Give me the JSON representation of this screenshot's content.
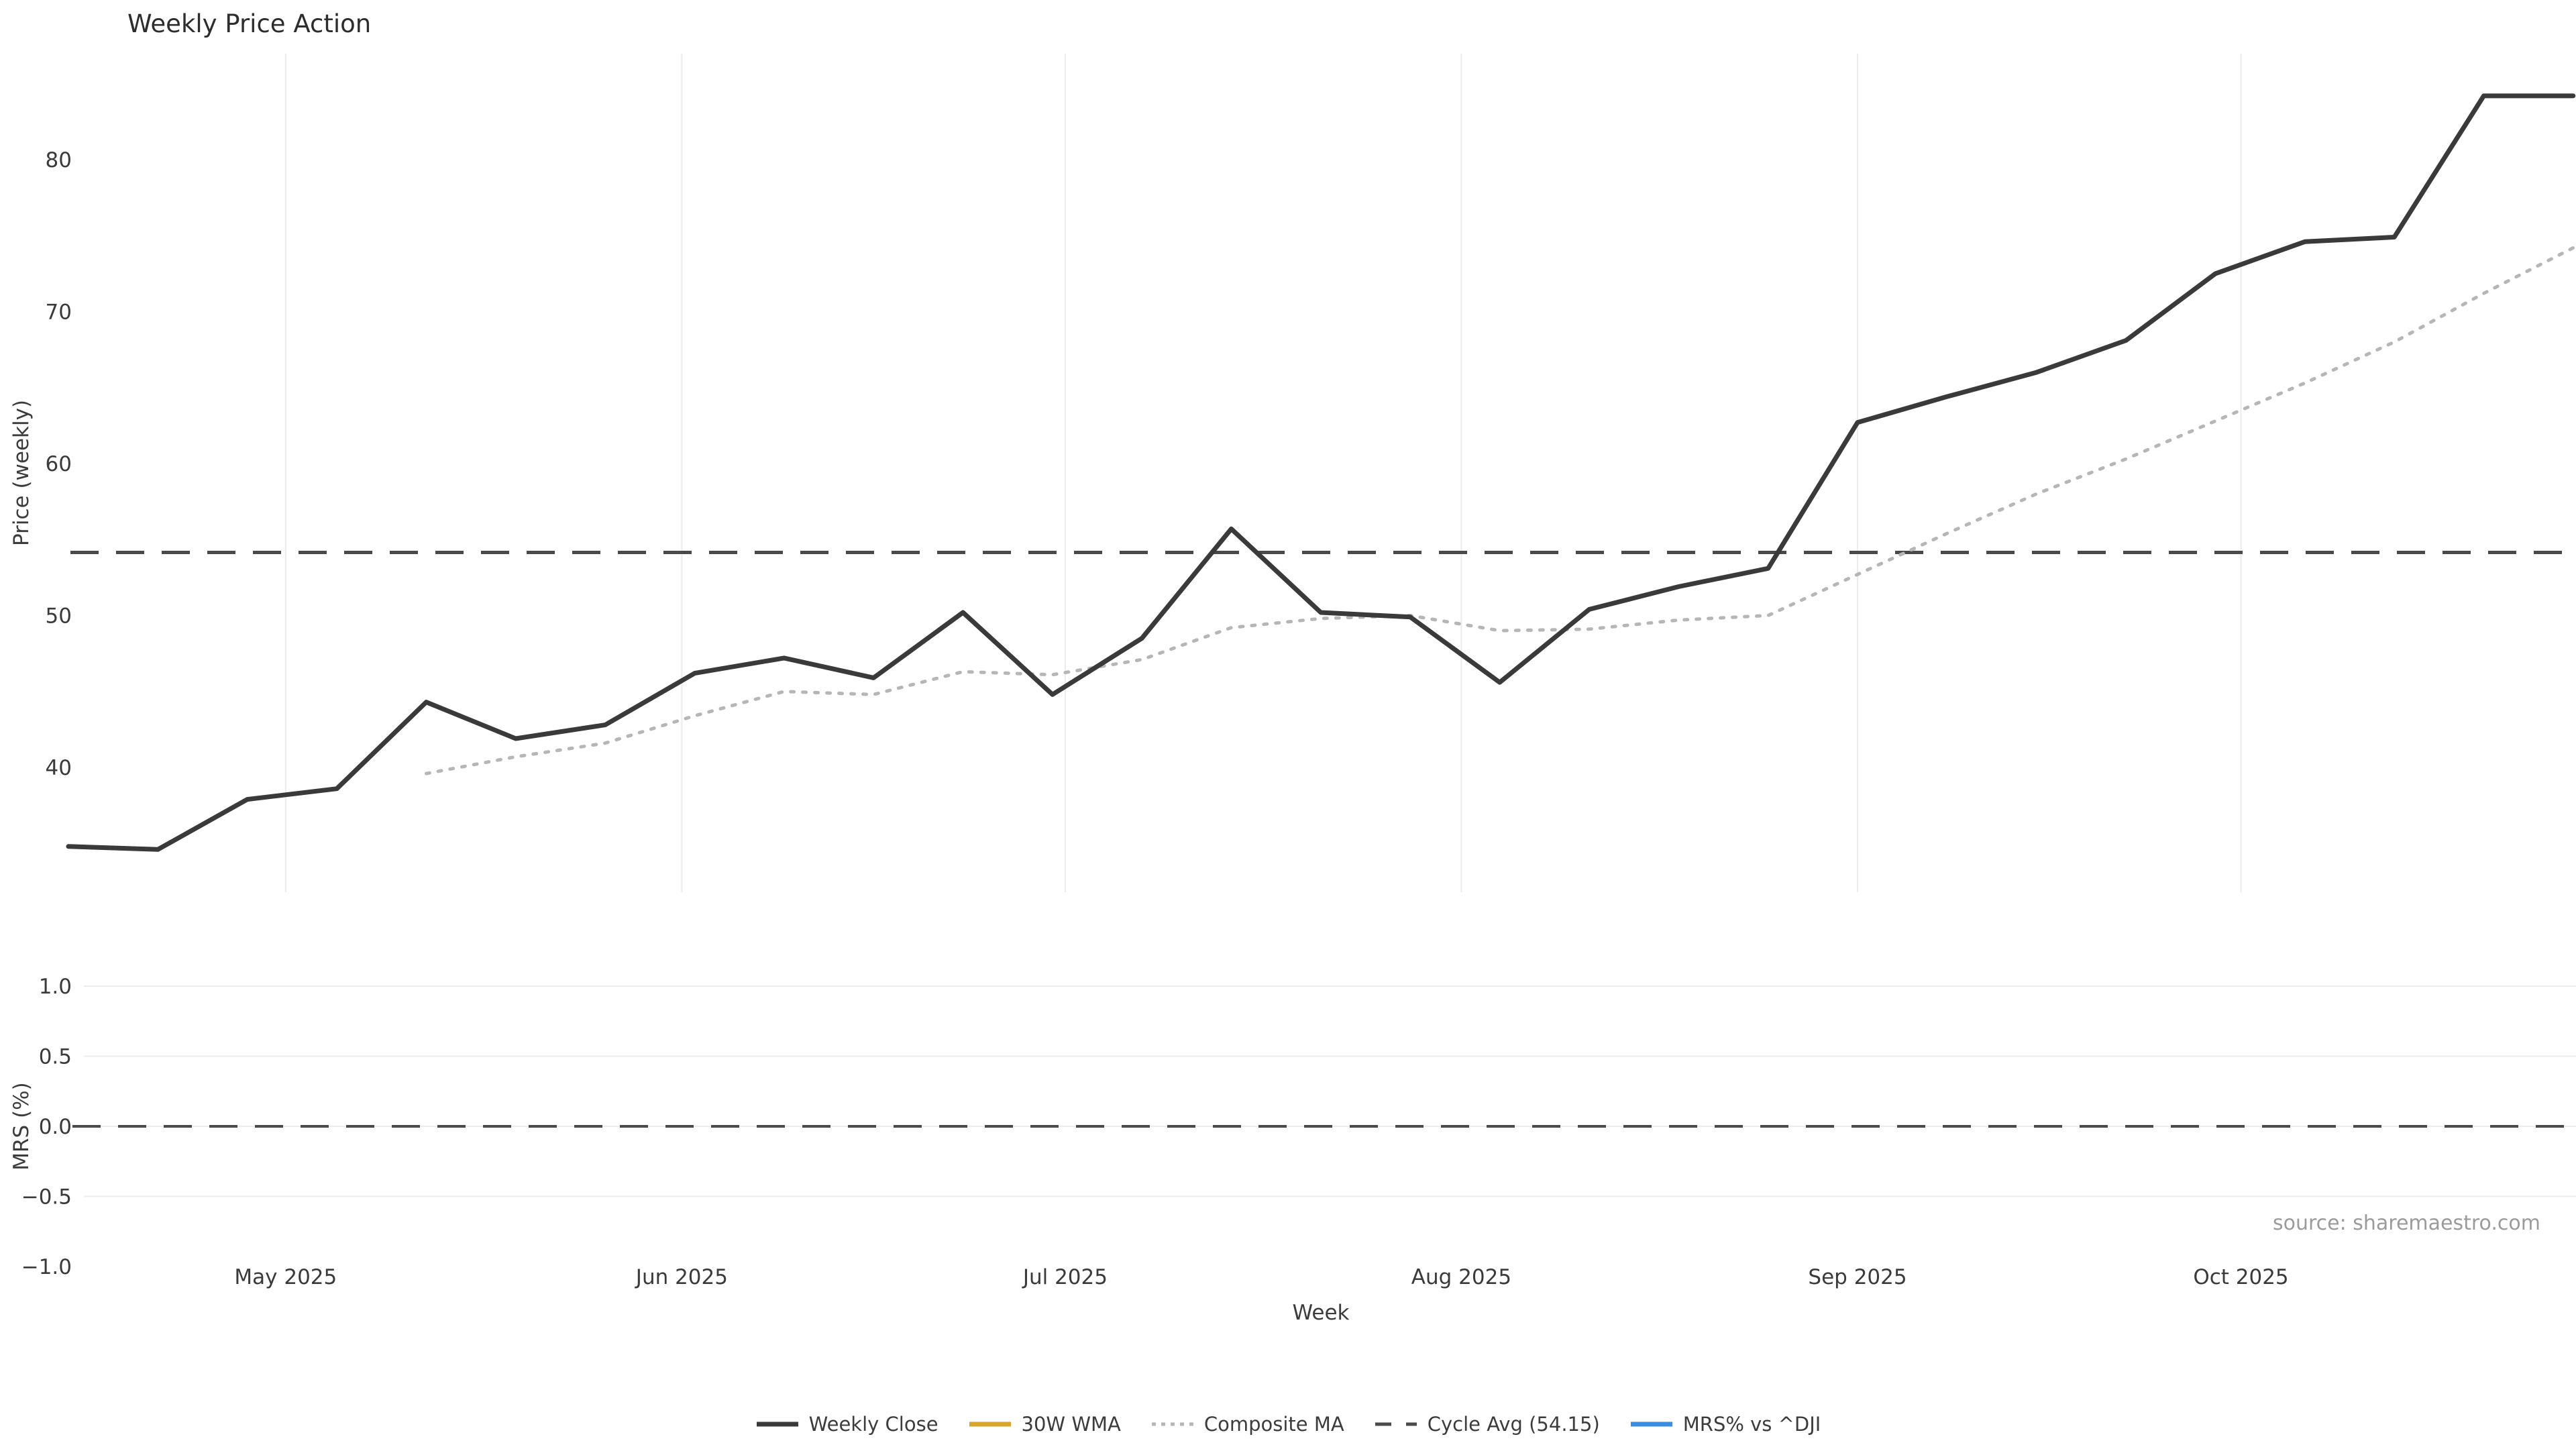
{
  "source_text": "source: sharemaestro.com",
  "chart_data": {
    "type": "line",
    "title": "Weekly Price Action",
    "x_dates": [
      "2025-04-14",
      "2025-04-21",
      "2025-04-28",
      "2025-05-05",
      "2025-05-12",
      "2025-05-19",
      "2025-05-26",
      "2025-06-02",
      "2025-06-09",
      "2025-06-16",
      "2025-06-23",
      "2025-06-30",
      "2025-07-07",
      "2025-07-14",
      "2025-07-21",
      "2025-07-28",
      "2025-08-04",
      "2025-08-11",
      "2025-08-18",
      "2025-08-25",
      "2025-09-01",
      "2025-09-08",
      "2025-09-15",
      "2025-09-22",
      "2025-09-29",
      "2025-10-06",
      "2025-10-13",
      "2025-10-20",
      "2025-10-27"
    ],
    "series": [
      {
        "name": "Weekly Close",
        "color": "#3a3a3a",
        "style": "solid",
        "panel": "price",
        "values": [
          34.8,
          34.6,
          37.9,
          38.6,
          44.3,
          41.9,
          42.8,
          46.2,
          47.2,
          45.9,
          50.2,
          44.8,
          48.5,
          55.7,
          50.2,
          49.9,
          45.6,
          50.4,
          51.9,
          53.1,
          62.7,
          64.4,
          66.0,
          68.1,
          72.5,
          74.6,
          74.9,
          84.2,
          84.2
        ]
      },
      {
        "name": "30W WMA",
        "color": "#d9a62a",
        "style": "solid",
        "panel": "price",
        "values": [
          null,
          null,
          null,
          null,
          null,
          null,
          null,
          null,
          null,
          null,
          null,
          null,
          null,
          null,
          null,
          null,
          null,
          null,
          null,
          null,
          null,
          null,
          null,
          null,
          null,
          null,
          null,
          null,
          null
        ]
      },
      {
        "name": "Composite MA",
        "color": "#b6b6b6",
        "style": "dotted",
        "panel": "price",
        "values": [
          null,
          null,
          null,
          null,
          39.6,
          40.7,
          41.6,
          43.4,
          45.0,
          44.8,
          46.3,
          46.1,
          47.1,
          49.2,
          49.8,
          50.0,
          49.0,
          49.1,
          49.7,
          50.0,
          52.7,
          55.4,
          58.0,
          60.3,
          62.8,
          65.3,
          68.0,
          71.2,
          74.2
        ]
      },
      {
        "name": "Cycle Avg (54.15)",
        "color": "#4a4a4a",
        "style": "dashed",
        "panel": "price",
        "cycle_avg": 54.15
      },
      {
        "name": "MRS% vs ^DJI",
        "color": "#3b8de0",
        "style": "solid",
        "panel": "mrs",
        "values": [
          null,
          null,
          null,
          null,
          null,
          null,
          null,
          null,
          null,
          null,
          null,
          null,
          null,
          null,
          null,
          null,
          null,
          null,
          null,
          null,
          null,
          null,
          null,
          null,
          null,
          null,
          null,
          null,
          null
        ]
      }
    ],
    "price_axis": {
      "label": "Price (weekly)",
      "ticks": [
        {
          "label": "40",
          "value": 40
        },
        {
          "label": "50",
          "value": 50
        },
        {
          "label": "60",
          "value": 60
        },
        {
          "label": "70",
          "value": 70
        },
        {
          "label": "80",
          "value": 80
        }
      ]
    },
    "mrs_axis": {
      "label": "MRS (%)",
      "ticks": [
        {
          "label": "1.0",
          "value": 1.0
        },
        {
          "label": "0.5",
          "value": 0.5
        },
        {
          "label": "0.0",
          "value": 0.0
        },
        {
          "label": "−0.5",
          "value": -0.5
        },
        {
          "label": "−1.0",
          "value": -1.0
        }
      ],
      "zero_line": 0.0
    },
    "x_axis": {
      "label": "Week",
      "ticks": [
        {
          "label": "May 2025",
          "date": "2025-05-01"
        },
        {
          "label": "Jun 2025",
          "date": "2025-06-01"
        },
        {
          "label": "Jul 2025",
          "date": "2025-07-01"
        },
        {
          "label": "Aug 2025",
          "date": "2025-08-01"
        },
        {
          "label": "Sep 2025",
          "date": "2025-09-01"
        },
        {
          "label": "Oct 2025",
          "date": "2025-10-01"
        }
      ]
    },
    "layout": {
      "grid": "vertical-months-on-price, horizontal-on-mrs",
      "legend_position": "bottom-center",
      "price_ylim_approx": [
        32,
        87
      ],
      "mrs_ylim_approx": [
        -1.25,
        1.25
      ]
    }
  }
}
